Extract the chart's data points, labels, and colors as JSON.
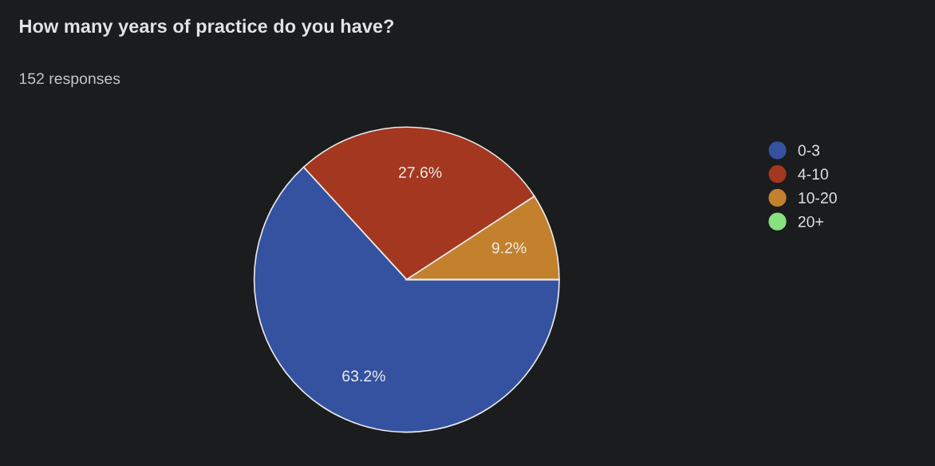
{
  "chart_data": {
    "type": "pie",
    "title": "How many years of practice do you have?",
    "subtitle": "152 responses",
    "categories": [
      "0-3",
      "4-10",
      "10-20",
      "20+"
    ],
    "values": [
      63.2,
      27.6,
      9.2,
      0
    ],
    "value_labels": [
      "63.2%",
      "27.6%",
      "9.2%",
      null
    ],
    "colors": [
      "#3452a0",
      "#a3371f",
      "#c3812d",
      "#88e07e"
    ],
    "legend": "right"
  }
}
